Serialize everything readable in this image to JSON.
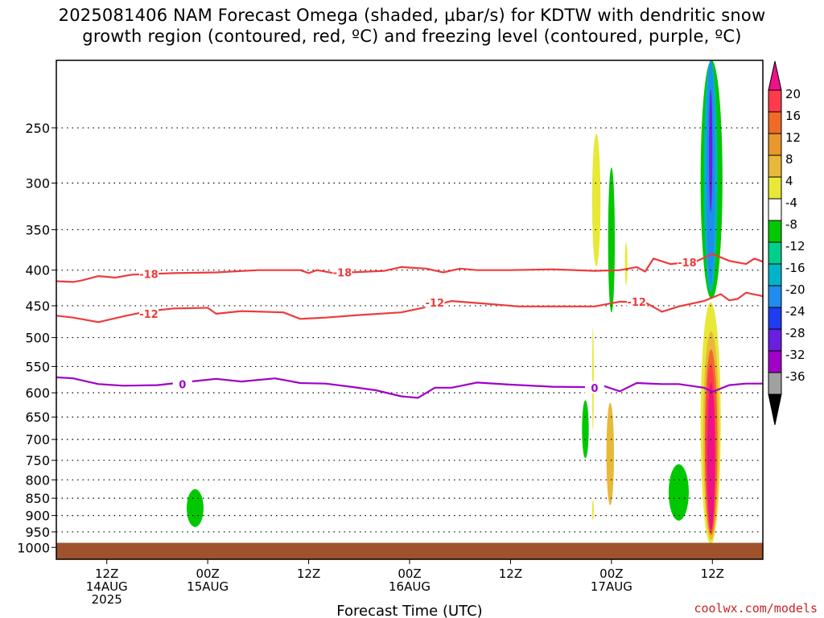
{
  "title": {
    "line1": "2025081406 NAM Forecast Omega (shaded, µbar/s) for KDTW with dendritic snow",
    "line2": "growth region (contoured, red, ºC) and freezing level (contoured, purple, ºC)"
  },
  "credit": "coolwx.com/models",
  "chart_data": {
    "type": "heatmap",
    "title": "2025081406 NAM Forecast Omega (shaded, µbar/s) for KDTW with dendritic snow growth region (contoured, red, ºC) and freezing level (contoured, purple, ºC)",
    "xlabel": "Forecast Time (UTC)",
    "ylabel": "",
    "y_scale": "pressure (log)",
    "y_ticks": [
      250,
      300,
      350,
      400,
      450,
      500,
      550,
      600,
      650,
      700,
      750,
      800,
      850,
      900,
      950,
      1000
    ],
    "y_range": [
      1040,
      200
    ],
    "x_ticks": [
      {
        "hour": 12,
        "lines": [
          "12Z",
          "14AUG",
          "2025"
        ]
      },
      {
        "hour": 24,
        "lines": [
          "00Z",
          "15AUG"
        ]
      },
      {
        "hour": 36,
        "lines": [
          "12Z"
        ]
      },
      {
        "hour": 48,
        "lines": [
          "00Z",
          "16AUG"
        ]
      },
      {
        "hour": 60,
        "lines": [
          "12Z"
        ]
      },
      {
        "hour": 72,
        "lines": [
          "00Z",
          "17AUG"
        ]
      },
      {
        "hour": 84,
        "lines": [
          "12Z"
        ]
      }
    ],
    "x_range_hours": [
      6,
      90
    ],
    "grid": "dotted horizontal",
    "colorbar": {
      "labels": [
        "20",
        "16",
        "12",
        "8",
        "4",
        "-4",
        "-8",
        "-12",
        "-16",
        "-20",
        "-24",
        "-28",
        "-32",
        "-36"
      ],
      "colors": [
        "#ff3b4b",
        "#f06a28",
        "#e8982c",
        "#e8b838",
        "#e8e838",
        "#ffffff",
        "#00c800",
        "#00d08a",
        "#00b4c8",
        "#1e8cf0",
        "#1e3cf0",
        "#6a1ee0",
        "#a000c8",
        "#a0a0a0"
      ],
      "over_color": "#ee1188",
      "under_color": "#000000"
    },
    "contours": [
      {
        "name": "-18",
        "color": "#ee3b3b",
        "labels": [
          {
            "hour": 17,
            "p": 405
          },
          {
            "hour": 40,
            "p": 403
          },
          {
            "hour": 81,
            "p": 390
          }
        ],
        "points": [
          [
            6,
            415
          ],
          [
            8,
            416
          ],
          [
            9,
            414
          ],
          [
            11,
            408
          ],
          [
            13,
            410
          ],
          [
            15,
            406
          ],
          [
            20,
            404
          ],
          [
            25,
            403
          ],
          [
            30,
            400
          ],
          [
            35,
            400
          ],
          [
            36,
            404
          ],
          [
            37,
            400
          ],
          [
            39,
            404
          ],
          [
            45,
            401
          ],
          [
            47,
            396
          ],
          [
            50,
            398
          ],
          [
            52,
            403
          ],
          [
            54,
            398
          ],
          [
            56,
            400
          ],
          [
            60,
            400
          ],
          [
            65,
            399
          ],
          [
            70,
            401
          ],
          [
            73,
            400
          ],
          [
            75,
            396
          ],
          [
            76,
            402
          ],
          [
            77,
            385
          ],
          [
            79,
            392
          ],
          [
            82,
            389
          ],
          [
            84,
            379
          ],
          [
            86,
            388
          ],
          [
            88,
            392
          ],
          [
            89,
            385
          ],
          [
            90,
            389
          ]
        ]
      },
      {
        "name": "-12",
        "color": "#ee3b3b",
        "labels": [
          {
            "hour": 17,
            "p": 462
          },
          {
            "hour": 51,
            "p": 445
          },
          {
            "hour": 75,
            "p": 444
          }
        ],
        "points": [
          [
            6,
            465
          ],
          [
            8,
            468
          ],
          [
            11,
            475
          ],
          [
            14,
            466
          ],
          [
            17,
            458
          ],
          [
            20,
            454
          ],
          [
            24,
            453
          ],
          [
            25,
            462
          ],
          [
            28,
            458
          ],
          [
            33,
            460
          ],
          [
            35,
            470
          ],
          [
            38,
            468
          ],
          [
            42,
            464
          ],
          [
            47,
            460
          ],
          [
            50,
            452
          ],
          [
            53,
            443
          ],
          [
            57,
            447
          ],
          [
            61,
            451
          ],
          [
            65,
            451
          ],
          [
            70,
            451
          ],
          [
            73,
            444
          ],
          [
            76,
            445
          ],
          [
            78,
            459
          ],
          [
            80,
            451
          ],
          [
            83,
            443
          ],
          [
            85,
            433
          ],
          [
            86,
            442
          ],
          [
            87,
            440
          ],
          [
            88,
            431
          ],
          [
            90,
            436
          ]
        ]
      },
      {
        "name": "0",
        "color": "#a000c8",
        "labels": [
          {
            "hour": 21,
            "p": 583
          },
          {
            "hour": 70,
            "p": 590
          }
        ],
        "points": [
          [
            6,
            570
          ],
          [
            8,
            572
          ],
          [
            11,
            583
          ],
          [
            14,
            586
          ],
          [
            18,
            585
          ],
          [
            22,
            578
          ],
          [
            25,
            573
          ],
          [
            28,
            578
          ],
          [
            32,
            572
          ],
          [
            35,
            581
          ],
          [
            38,
            582
          ],
          [
            41,
            588
          ],
          [
            44,
            595
          ],
          [
            47,
            607
          ],
          [
            49,
            610
          ],
          [
            51,
            590
          ],
          [
            53,
            590
          ],
          [
            56,
            580
          ],
          [
            60,
            584
          ],
          [
            65,
            588
          ],
          [
            70,
            589
          ],
          [
            71,
            586
          ],
          [
            73,
            597
          ],
          [
            75,
            581
          ],
          [
            78,
            583
          ],
          [
            80,
            583
          ],
          [
            83,
            590
          ],
          [
            84,
            598
          ],
          [
            86,
            585
          ],
          [
            88,
            582
          ],
          [
            90,
            582
          ]
        ]
      }
    ],
    "shaded_regions": [
      {
        "color": "#00c800",
        "hour_range": [
          21.5,
          23.5
        ],
        "p_range": [
          825,
          935
        ]
      },
      {
        "color": "#e8e838",
        "hour_range": [
          69.7,
          70.7
        ],
        "p_range": [
          255,
          395
        ]
      },
      {
        "color": "#00c800",
        "hour_range": [
          71.6,
          72.4
        ],
        "p_range": [
          285,
          460
        ]
      },
      {
        "color": "#e8e838",
        "hour_range": [
          73.6,
          73.9
        ],
        "p_range": [
          365,
          420
        ]
      },
      {
        "color": "#00c800",
        "hour_range": [
          68.5,
          69.3
        ],
        "p_range": [
          615,
          745
        ]
      },
      {
        "color": "#e8e838",
        "hour_range": [
          69.7,
          69.9
        ],
        "p_range": [
          485,
          680
        ]
      },
      {
        "color": "#e8b838",
        "hour_range": [
          71.4,
          72.3
        ],
        "p_range": [
          620,
          870
        ]
      },
      {
        "color": "#e8e838",
        "hour_range": [
          69.7,
          69.9
        ],
        "p_range": [
          855,
          915
        ]
      },
      {
        "color": "#00c800",
        "hour_range": [
          78.8,
          81.2
        ],
        "p_range": [
          760,
          915
        ]
      },
      {
        "color": "#00c800",
        "hour_range": [
          82.6,
          85.2
        ],
        "p_range": [
          200,
          440
        ]
      },
      {
        "color": "#00b4c8",
        "hour_range": [
          83.0,
          84.6
        ],
        "p_range": [
          200,
          430
        ]
      },
      {
        "color": "#1e8cf0",
        "hour_range": [
          83.3,
          84.3
        ],
        "p_range": [
          200,
          420
        ]
      },
      {
        "color": "#6a1ee0",
        "hour_range": [
          83.6,
          84.0
        ],
        "p_range": [
          220,
          330
        ]
      },
      {
        "color": "#e8e838",
        "hour_range": [
          82.6,
          85.0
        ],
        "p_range": [
          445,
          990
        ]
      },
      {
        "color": "#e8b838",
        "hour_range": [
          82.9,
          84.8
        ],
        "p_range": [
          490,
          975
        ]
      },
      {
        "color": "#f06a28",
        "hour_range": [
          83.1,
          84.6
        ],
        "p_range": [
          520,
          960
        ]
      },
      {
        "color": "#ff3b4b",
        "hour_range": [
          83.2,
          84.4
        ],
        "p_range": [
          545,
          950
        ]
      },
      {
        "color": "#ee1188",
        "hour_range": [
          83.4,
          84.3
        ],
        "p_range": [
          580,
          945
        ]
      }
    ],
    "terrain": {
      "color": "#a0522d",
      "p_top": 985
    }
  },
  "xaxis_title": "Forecast Time (UTC)"
}
